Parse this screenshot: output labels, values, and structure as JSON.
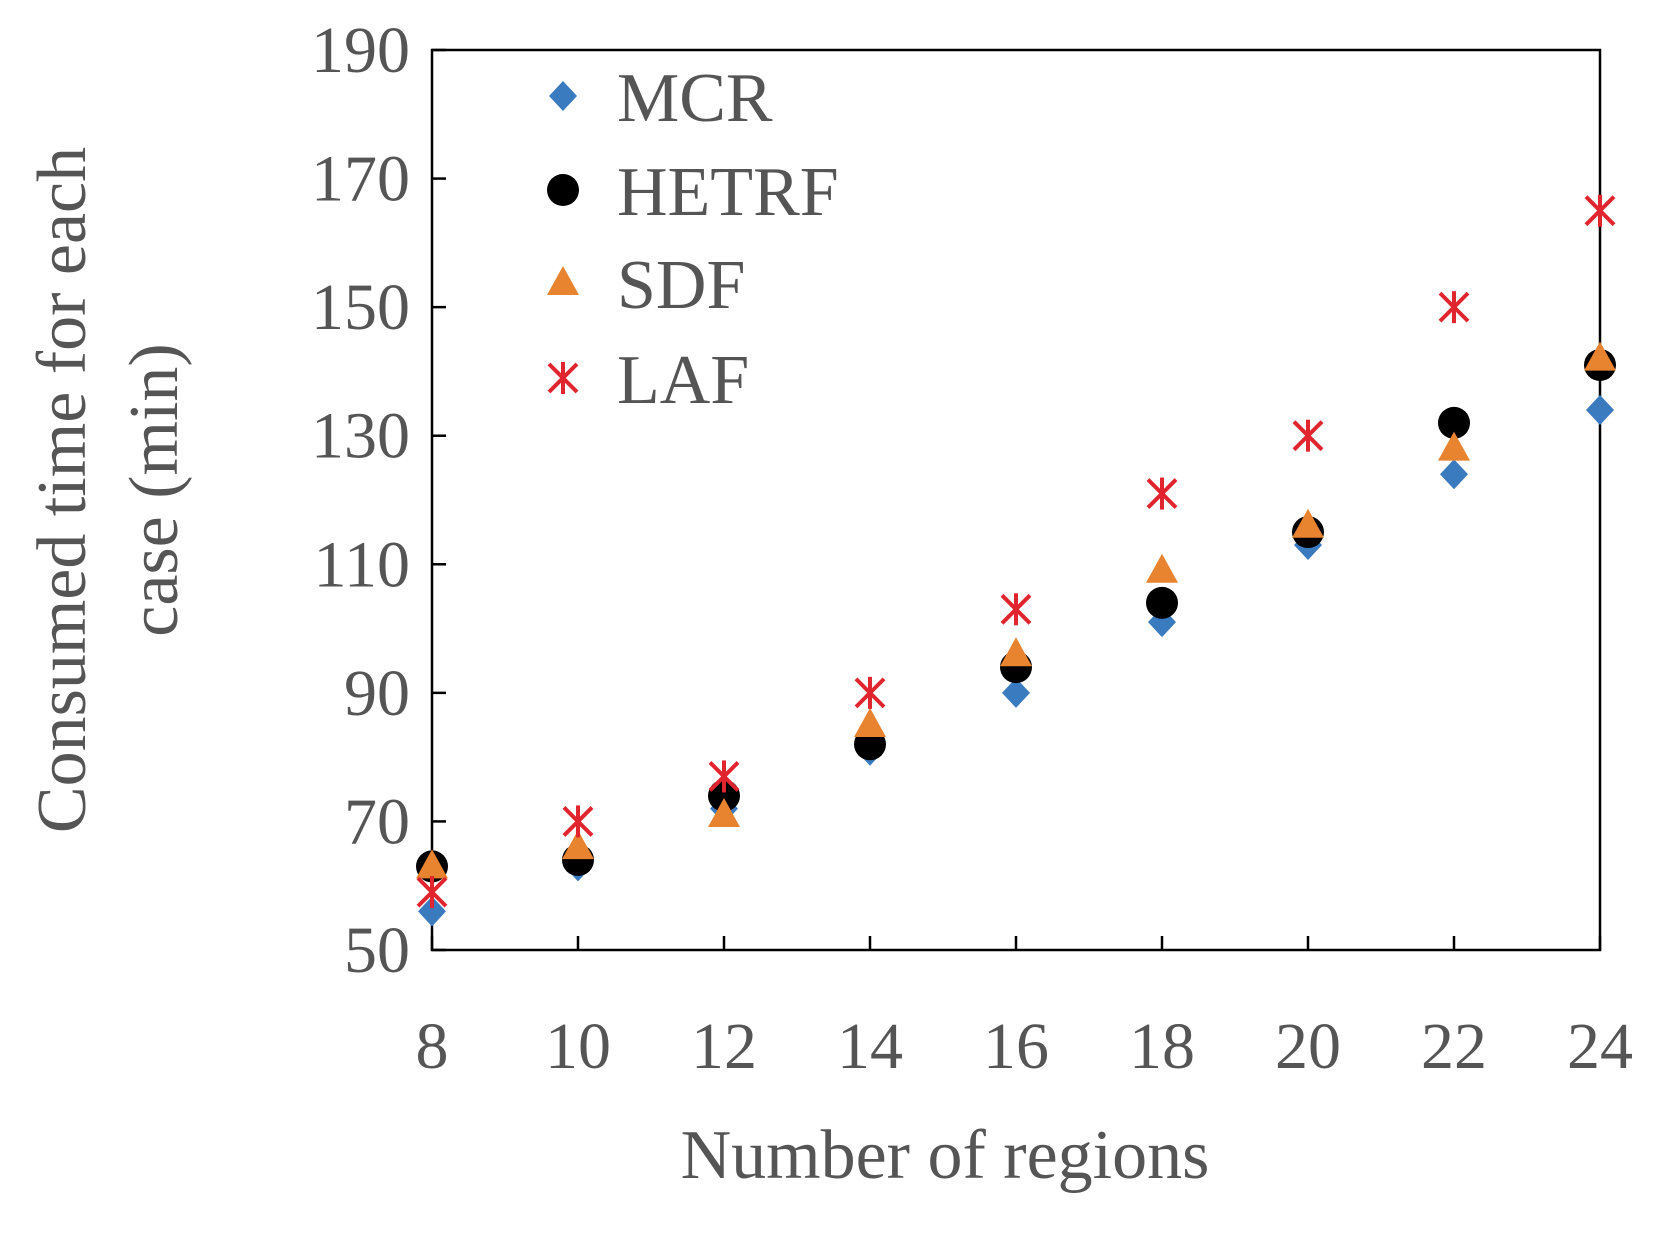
{
  "chart_data": {
    "type": "scatter",
    "title": "",
    "xlabel": "Number of regions",
    "ylabel_lines": [
      "Consumed time for each",
      "case (min)"
    ],
    "x": [
      8,
      10,
      12,
      14,
      16,
      18,
      20,
      22,
      24
    ],
    "xticks": [
      "8",
      "10",
      "12",
      "14",
      "16",
      "18",
      "20",
      "22",
      "24"
    ],
    "xlim": [
      8,
      24
    ],
    "yticks": [
      "50",
      "70",
      "90",
      "110",
      "130",
      "150",
      "170",
      "190"
    ],
    "ylim": [
      50,
      190
    ],
    "grid": false,
    "legend_position": "top-left",
    "series": [
      {
        "name": "MCR",
        "marker": "diamond",
        "color": "#3a7bbf",
        "values": [
          56,
          63,
          72,
          81,
          90,
          101,
          113,
          124,
          134
        ]
      },
      {
        "name": "HETRF",
        "marker": "circle",
        "color": "#000000",
        "values": [
          63,
          64,
          74,
          82,
          94,
          104,
          115,
          132,
          141
        ]
      },
      {
        "name": "SDF",
        "marker": "triangle",
        "color": "#e8832f",
        "values": [
          63,
          66,
          71,
          85,
          96,
          109,
          116,
          128,
          142
        ]
      },
      {
        "name": "LAF",
        "marker": "asterisk",
        "color": "#e0252e",
        "values": [
          59,
          70,
          77,
          90,
          103,
          121,
          130,
          150,
          165
        ]
      }
    ]
  }
}
